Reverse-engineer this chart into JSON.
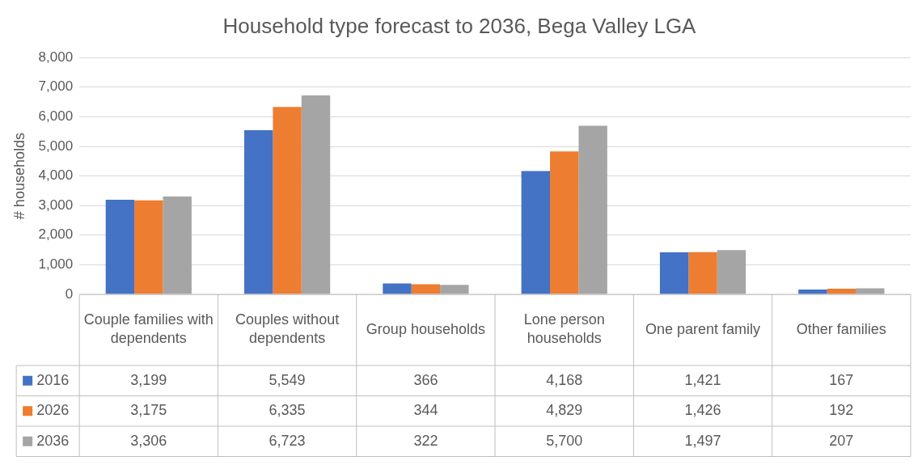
{
  "chart_data": {
    "type": "bar",
    "title": "Household type forecast to 2036, Bega Valley LGA",
    "ylabel": "# households",
    "categories": [
      "Couple families with dependents",
      "Couples without dependents",
      "Group households",
      "Lone person households",
      "One parent family",
      "Other families"
    ],
    "series": [
      {
        "name": "2016",
        "color": "#4472c4",
        "values": [
          3199,
          5549,
          366,
          4168,
          1421,
          167
        ],
        "value_labels": [
          "3,199",
          "5,549",
          "366",
          "4,168",
          "1,421",
          "167"
        ]
      },
      {
        "name": "2026",
        "color": "#ed7d31",
        "values": [
          3175,
          6335,
          344,
          4829,
          1426,
          192
        ],
        "value_labels": [
          "3,175",
          "6,335",
          "344",
          "4,829",
          "1,426",
          "192"
        ]
      },
      {
        "name": "2036",
        "color": "#a5a5a5",
        "values": [
          3306,
          6723,
          322,
          5700,
          1497,
          207
        ],
        "value_labels": [
          "3,306",
          "6,723",
          "322",
          "5,700",
          "1,497",
          "207"
        ]
      }
    ],
    "ylim": [
      0,
      8000
    ],
    "yticks": [
      0,
      {
        "value": 1000,
        "label": "1,000"
      },
      {
        "value": 2000,
        "label": "2,000"
      },
      {
        "value": 3000,
        "label": "3,000"
      },
      {
        "value": 4000,
        "label": "4,000"
      },
      {
        "value": 5000,
        "label": "5,000"
      },
      {
        "value": 6000,
        "label": "6,000"
      },
      {
        "value": 7000,
        "label": "7,000"
      },
      {
        "value": 8000,
        "label": "8,000"
      }
    ],
    "grid": "y",
    "legend": "bottom"
  }
}
